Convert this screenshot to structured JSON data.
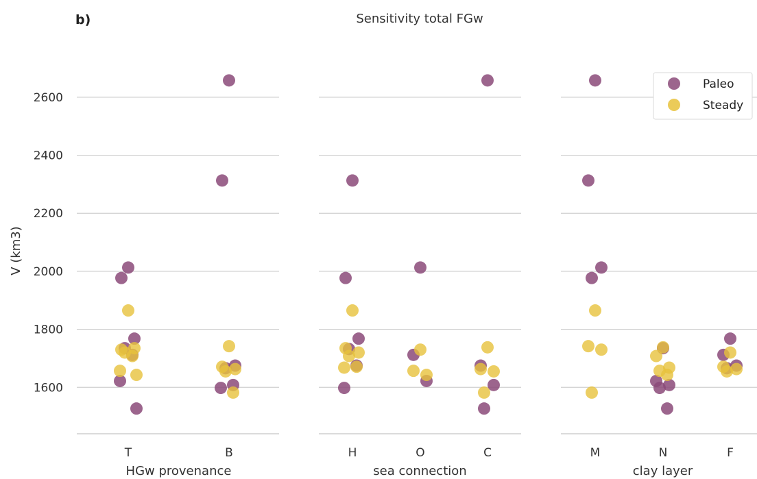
{
  "panel_label": "b)",
  "title": "Sensitivity total FGw",
  "ylabel": "V (km3)",
  "colors": {
    "Paleo": "#8b4a79",
    "Steady": "#e7c23c"
  },
  "chart_data": {
    "type": "scatter",
    "subtype": "strip",
    "title": "Sensitivity total FGw",
    "ylabel": "V (km3)",
    "ylim": [
      1440,
      2680
    ],
    "yticks": [
      1600,
      1800,
      2000,
      2200,
      2400,
      2600
    ],
    "grid": "horizontal",
    "legend": {
      "position": "top-right",
      "entries": [
        "Paleo",
        "Steady"
      ]
    },
    "panels": [
      {
        "xlabel": "HGw provenance",
        "categories": [
          "T",
          "B"
        ],
        "series": [
          {
            "name": "Paleo",
            "points": [
              {
                "cat": "T",
                "y": 2013
              },
              {
                "cat": "T",
                "y": 1977
              },
              {
                "cat": "T",
                "y": 1768
              },
              {
                "cat": "T",
                "y": 1735
              },
              {
                "cat": "T",
                "y": 1712
              },
              {
                "cat": "T",
                "y": 1622
              },
              {
                "cat": "T",
                "y": 1527
              },
              {
                "cat": "B",
                "y": 2658
              },
              {
                "cat": "B",
                "y": 2313
              },
              {
                "cat": "B",
                "y": 1675
              },
              {
                "cat": "B",
                "y": 1666
              },
              {
                "cat": "B",
                "y": 1608
              },
              {
                "cat": "B",
                "y": 1598
              }
            ]
          },
          {
            "name": "Steady",
            "points": [
              {
                "cat": "T",
                "y": 1865
              },
              {
                "cat": "T",
                "y": 1730
              },
              {
                "cat": "T",
                "y": 1735
              },
              {
                "cat": "T",
                "y": 1720
              },
              {
                "cat": "T",
                "y": 1708
              },
              {
                "cat": "T",
                "y": 1657
              },
              {
                "cat": "T",
                "y": 1643
              },
              {
                "cat": "B",
                "y": 1742
              },
              {
                "cat": "B",
                "y": 1671
              },
              {
                "cat": "B",
                "y": 1663
              },
              {
                "cat": "B",
                "y": 1655
              },
              {
                "cat": "B",
                "y": 1582
              }
            ]
          }
        ]
      },
      {
        "xlabel": "sea connection",
        "categories": [
          "H",
          "O",
          "C"
        ],
        "series": [
          {
            "name": "Paleo",
            "points": [
              {
                "cat": "H",
                "y": 2313
              },
              {
                "cat": "H",
                "y": 1977
              },
              {
                "cat": "H",
                "y": 1768
              },
              {
                "cat": "H",
                "y": 1732
              },
              {
                "cat": "H",
                "y": 1675
              },
              {
                "cat": "H",
                "y": 1598
              },
              {
                "cat": "O",
                "y": 2013
              },
              {
                "cat": "O",
                "y": 1712
              },
              {
                "cat": "O",
                "y": 1622
              },
              {
                "cat": "C",
                "y": 2658
              },
              {
                "cat": "C",
                "y": 1675
              },
              {
                "cat": "C",
                "y": 1608
              },
              {
                "cat": "C",
                "y": 1527
              }
            ]
          },
          {
            "name": "Steady",
            "points": [
              {
                "cat": "H",
                "y": 1865
              },
              {
                "cat": "H",
                "y": 1735
              },
              {
                "cat": "H",
                "y": 1720
              },
              {
                "cat": "H",
                "y": 1708
              },
              {
                "cat": "H",
                "y": 1671
              },
              {
                "cat": "H",
                "y": 1668
              },
              {
                "cat": "O",
                "y": 1730
              },
              {
                "cat": "O",
                "y": 1657
              },
              {
                "cat": "O",
                "y": 1643
              },
              {
                "cat": "C",
                "y": 1738
              },
              {
                "cat": "C",
                "y": 1663
              },
              {
                "cat": "C",
                "y": 1655
              },
              {
                "cat": "C",
                "y": 1582
              }
            ]
          }
        ]
      },
      {
        "xlabel": "clay layer",
        "categories": [
          "M",
          "N",
          "F"
        ],
        "series": [
          {
            "name": "Paleo",
            "points": [
              {
                "cat": "M",
                "y": 2658
              },
              {
                "cat": "M",
                "y": 2313
              },
              {
                "cat": "M",
                "y": 2013
              },
              {
                "cat": "M",
                "y": 1977
              },
              {
                "cat": "N",
                "y": 1735
              },
              {
                "cat": "N",
                "y": 1622
              },
              {
                "cat": "N",
                "y": 1608
              },
              {
                "cat": "N",
                "y": 1598
              },
              {
                "cat": "N",
                "y": 1527
              },
              {
                "cat": "F",
                "y": 1768
              },
              {
                "cat": "F",
                "y": 1712
              },
              {
                "cat": "F",
                "y": 1675
              },
              {
                "cat": "F",
                "y": 1666
              }
            ]
          },
          {
            "name": "Steady",
            "points": [
              {
                "cat": "M",
                "y": 1865
              },
              {
                "cat": "M",
                "y": 1742
              },
              {
                "cat": "M",
                "y": 1730
              },
              {
                "cat": "M",
                "y": 1582
              },
              {
                "cat": "N",
                "y": 1738
              },
              {
                "cat": "N",
                "y": 1708
              },
              {
                "cat": "N",
                "y": 1668
              },
              {
                "cat": "N",
                "y": 1657
              },
              {
                "cat": "N",
                "y": 1643
              },
              {
                "cat": "F",
                "y": 1720
              },
              {
                "cat": "F",
                "y": 1671
              },
              {
                "cat": "F",
                "y": 1663
              },
              {
                "cat": "F",
                "y": 1655
              }
            ]
          }
        ]
      }
    ]
  }
}
